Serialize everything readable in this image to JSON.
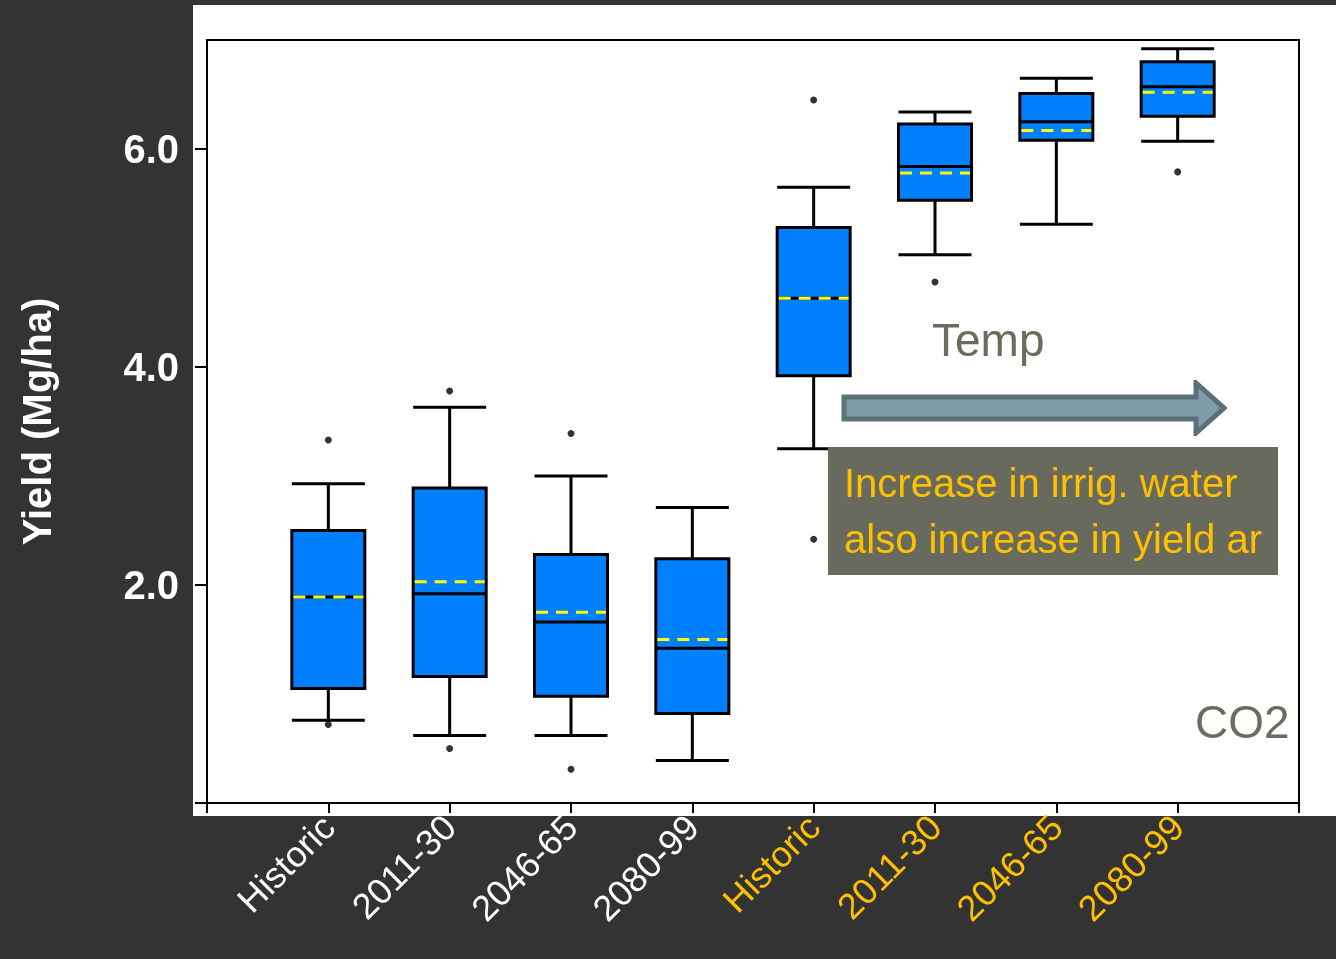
{
  "chart_data": {
    "type": "box",
    "ylabel": "Yield (Mg/ha)",
    "categories": [
      "Historic",
      "2011-30",
      "2046-65",
      "2080-99",
      "Historic",
      "2011-30",
      "2046-65",
      "2080-99"
    ],
    "boxes": [
      {
        "low": 0.76,
        "q1": 1.05,
        "median": 1.89,
        "q3": 2.5,
        "high": 2.93,
        "mean": 1.89,
        "outliers": [
          3.33,
          0.72
        ]
      },
      {
        "low": 0.62,
        "q1": 1.16,
        "median": 1.92,
        "q3": 2.89,
        "high": 3.63,
        "mean": 2.03,
        "outliers": [
          3.78,
          0.5
        ]
      },
      {
        "low": 0.62,
        "q1": 0.98,
        "median": 1.66,
        "q3": 2.28,
        "high": 3.0,
        "mean": 1.75,
        "outliers": [
          3.39,
          0.31
        ]
      },
      {
        "low": 0.39,
        "q1": 0.82,
        "median": 1.42,
        "q3": 2.24,
        "high": 2.71,
        "mean": 1.5
      },
      {
        "low": 3.25,
        "q1": 3.92,
        "median": 4.63,
        "q3": 5.28,
        "high": 5.65,
        "mean": 4.63,
        "outliers": [
          6.45,
          2.42
        ]
      },
      {
        "low": 5.03,
        "q1": 5.53,
        "median": 5.84,
        "q3": 6.23,
        "high": 6.34,
        "mean": 5.78,
        "outliers": [
          4.78
        ]
      },
      {
        "low": 5.31,
        "q1": 6.08,
        "median": 6.25,
        "q3": 6.51,
        "high": 6.65,
        "mean": 6.17
      },
      {
        "low": 6.07,
        "q1": 6.3,
        "median": 6.57,
        "q3": 6.8,
        "high": 6.92,
        "mean": 6.52,
        "outliers": [
          5.79
        ]
      }
    ],
    "color": "#0080ff",
    "ylim": [
      0,
      7
    ],
    "yticks": [
      {
        "value": 0,
        "label": null
      },
      {
        "value": 2,
        "label": "2.0"
      },
      {
        "value": 4,
        "label": "4.0"
      },
      {
        "value": 6,
        "label": "6.0"
      }
    ],
    "annotations": [
      "Temp",
      "Increase in irrig. water\nalso increase in yield ar",
      "CO2"
    ]
  }
}
